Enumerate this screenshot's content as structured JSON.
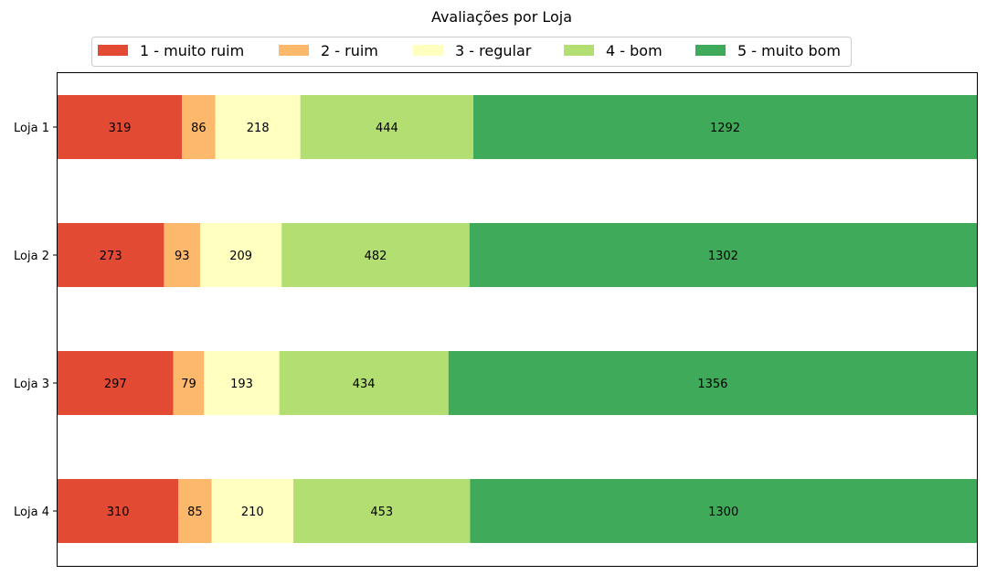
{
  "chart_data": {
    "type": "bar",
    "orientation": "horizontal",
    "stacked": true,
    "normalized": true,
    "title": "Avaliações por Loja",
    "xlabel": "",
    "ylabel": "",
    "categories": [
      "Loja 1",
      "Loja 2",
      "Loja 3",
      "Loja 4"
    ],
    "series": [
      {
        "name": "1 - muito ruim",
        "color": "#e34a33",
        "values": [
          319,
          273,
          297,
          310
        ]
      },
      {
        "name": "2 - ruim",
        "color": "#fdb96b",
        "values": [
          86,
          93,
          79,
          85
        ]
      },
      {
        "name": "3 - regular",
        "color": "#ffffc0",
        "values": [
          218,
          209,
          193,
          210
        ]
      },
      {
        "name": "4 - bom",
        "color": "#b3df72",
        "values": [
          444,
          482,
          434,
          453
        ]
      },
      {
        "name": "5 - muito bom",
        "color": "#3faa59",
        "values": [
          1292,
          1302,
          1356,
          1300
        ]
      }
    ],
    "legend": {
      "placement": "top-center",
      "columns": 5
    },
    "grid": false,
    "x_ticks_visible": false
  }
}
